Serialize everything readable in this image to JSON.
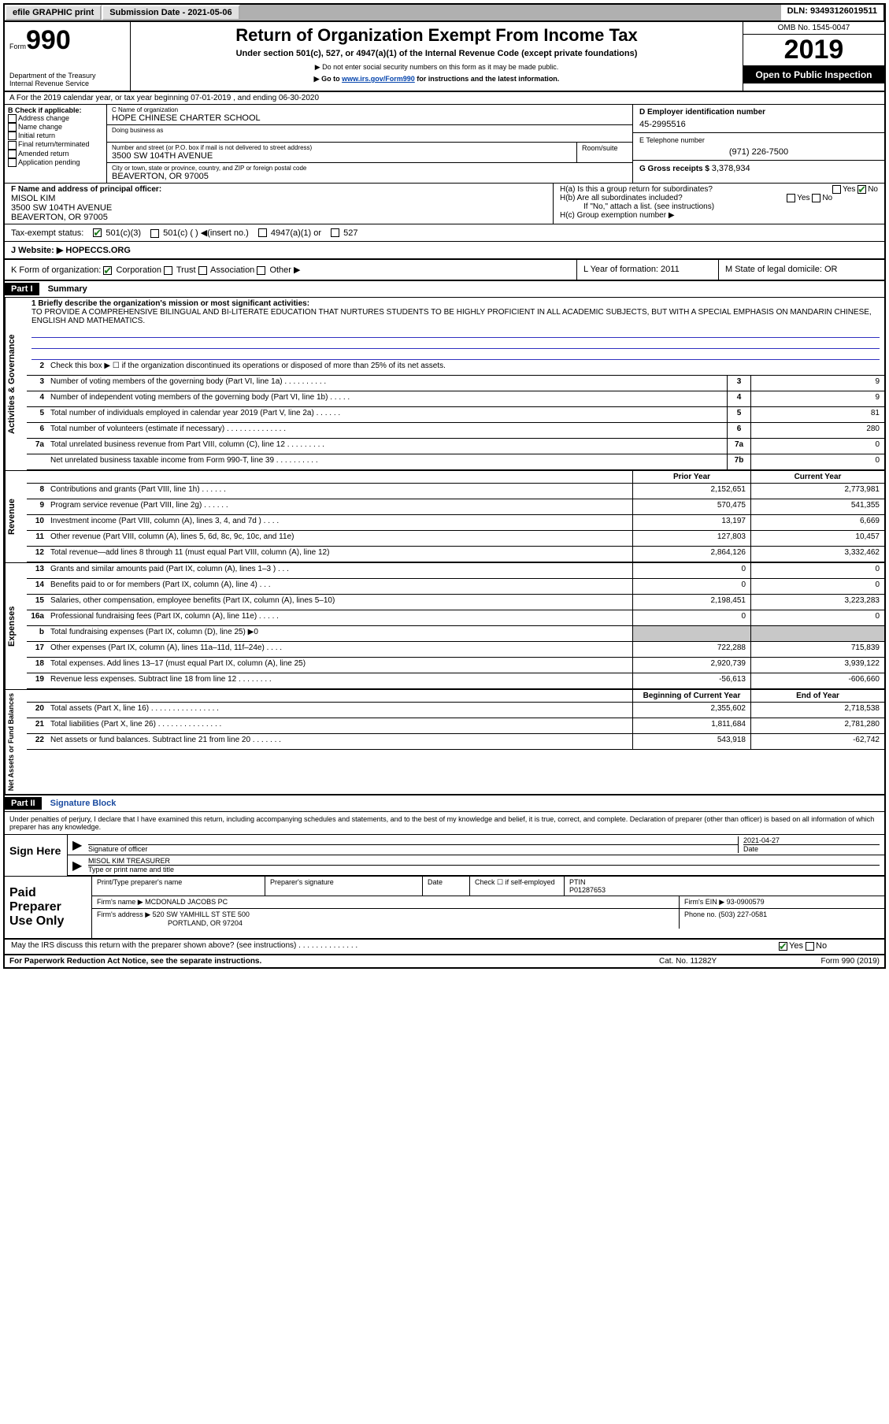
{
  "topbar": {
    "efile": "efile GRAPHIC print",
    "submission": "Submission Date - 2021-05-06",
    "dln": "DLN: 93493126019511"
  },
  "header": {
    "form_prefix": "Form",
    "form_number": "990",
    "dept": "Department of the Treasury\nInternal Revenue Service",
    "title": "Return of Organization Exempt From Income Tax",
    "subtitle": "Under section 501(c), 527, or 4947(a)(1) of the Internal Revenue Code (except private foundations)",
    "note1": "▶ Do not enter social security numbers on this form as it may be made public.",
    "note2_pre": "▶ Go to ",
    "note2_link": "www.irs.gov/Form990",
    "note2_post": " for instructions and the latest information.",
    "omb": "OMB No. 1545-0047",
    "year": "2019",
    "open": "Open to Public Inspection"
  },
  "row_a": "A For the 2019 calendar year, or tax year beginning 07-01-2019   , and ending 06-30-2020",
  "col_b": {
    "title": "B Check if applicable:",
    "items": [
      "Address change",
      "Name change",
      "Initial return",
      "Final return/terminated",
      "Amended return",
      "Application pending"
    ]
  },
  "col_c": {
    "name_label": "C Name of organization",
    "name": "HOPE CHINESE CHARTER SCHOOL",
    "dba_label": "Doing business as",
    "addr_label": "Number and street (or P.O. box if mail is not delivered to street address)",
    "addr": "3500 SW 104TH AVENUE",
    "room_label": "Room/suite",
    "city_label": "City or town, state or province, country, and ZIP or foreign postal code",
    "city": "BEAVERTON, OR  97005"
  },
  "col_d": {
    "ein_label": "D Employer identification number",
    "ein": "45-2995516",
    "tel_label": "E Telephone number",
    "tel": "(971) 226-7500",
    "gross_label": "G Gross receipts $ ",
    "gross": "3,378,934"
  },
  "col_f": {
    "label": "F  Name and address of principal officer:",
    "name": "MISOL KIM",
    "addr1": "3500 SW 104TH AVENUE",
    "addr2": "BEAVERTON, OR  97005"
  },
  "col_h": {
    "ha": "H(a)  Is this a group return for subordinates?",
    "hb": "H(b)  Are all subordinates included?",
    "hb_note": "If \"No,\" attach a list. (see instructions)",
    "hc": "H(c)  Group exemption number ▶"
  },
  "tax_exempt": {
    "label": "Tax-exempt status:",
    "opt1": "501(c)(3)",
    "opt2": "501(c) (  ) ◀(insert no.)",
    "opt3": "4947(a)(1) or",
    "opt4": "527"
  },
  "website": {
    "label": "J  Website: ▶ ",
    "value": "HOPECCS.ORG"
  },
  "klm": {
    "k": "K Form of organization:",
    "k_opts": [
      "Corporation",
      "Trust",
      "Association",
      "Other ▶"
    ],
    "l": "L Year of formation: 2011",
    "m": "M State of legal domicile: OR"
  },
  "part1": {
    "header": "Part I",
    "title": "Summary"
  },
  "mission": {
    "label": "1  Briefly describe the organization's mission or most significant activities:",
    "text": "TO PROVIDE A COMPREHENSIVE BILINGUAL AND BI-LITERATE EDUCATION THAT NURTURES STUDENTS TO BE HIGHLY PROFICIENT IN ALL ACADEMIC SUBJECTS, BUT WITH A SPECIAL EMPHASIS ON MANDARIN CHINESE, ENGLISH AND MATHEMATICS."
  },
  "line2": "Check this box ▶ ☐  if the organization discontinued its operations or disposed of more than 25% of its net assets.",
  "governance_lines": [
    {
      "n": "3",
      "d": "Number of voting members of the governing body (Part VI, line 1a)  .   .   .   .   .   .   .   .   .   .",
      "box": "3",
      "v": "9"
    },
    {
      "n": "4",
      "d": "Number of independent voting members of the governing body (Part VI, line 1b)  .   .   .   .   .",
      "box": "4",
      "v": "9"
    },
    {
      "n": "5",
      "d": "Total number of individuals employed in calendar year 2019 (Part V, line 2a)  .   .   .   .   .   .",
      "box": "5",
      "v": "81"
    },
    {
      "n": "6",
      "d": "Total number of volunteers (estimate if necessary)   .   .   .   .   .   .   .   .   .   .   .   .   .   .",
      "box": "6",
      "v": "280"
    },
    {
      "n": "7a",
      "d": "Total unrelated business revenue from Part VIII, column (C), line 12  .   .   .   .   .   .   .   .   .",
      "box": "7a",
      "v": "0"
    },
    {
      "n": "",
      "d": "Net unrelated business taxable income from Form 990-T, line 39   .   .   .   .   .   .   .   .   .   .",
      "box": "7b",
      "v": "0"
    }
  ],
  "col_headers": {
    "prior": "Prior Year",
    "current": "Current Year"
  },
  "revenue_lines": [
    {
      "n": "8",
      "d": "Contributions and grants (Part VIII, line 1h)   .   .   .   .   .   .",
      "p": "2,152,651",
      "c": "2,773,981"
    },
    {
      "n": "9",
      "d": "Program service revenue (Part VIII, line 2g)   .   .   .   .   .   .",
      "p": "570,475",
      "c": "541,355"
    },
    {
      "n": "10",
      "d": "Investment income (Part VIII, column (A), lines 3, 4, and 7d )   .   .   .   .",
      "p": "13,197",
      "c": "6,669"
    },
    {
      "n": "11",
      "d": "Other revenue (Part VIII, column (A), lines 5, 6d, 8c, 9c, 10c, and 11e)",
      "p": "127,803",
      "c": "10,457"
    },
    {
      "n": "12",
      "d": "Total revenue—add lines 8 through 11 (must equal Part VIII, column (A), line 12)",
      "p": "2,864,126",
      "c": "3,332,462"
    }
  ],
  "expense_lines": [
    {
      "n": "13",
      "d": "Grants and similar amounts paid (Part IX, column (A), lines 1–3 )   .   .   .",
      "p": "0",
      "c": "0"
    },
    {
      "n": "14",
      "d": "Benefits paid to or for members (Part IX, column (A), line 4)   .   .   .",
      "p": "0",
      "c": "0"
    },
    {
      "n": "15",
      "d": "Salaries, other compensation, employee benefits (Part IX, column (A), lines 5–10)",
      "p": "2,198,451",
      "c": "3,223,283"
    },
    {
      "n": "16a",
      "d": "Professional fundraising fees (Part IX, column (A), line 11e)   .   .   .   .   .",
      "p": "0",
      "c": "0"
    },
    {
      "n": "b",
      "d": "Total fundraising expenses (Part IX, column (D), line 25) ▶0",
      "p": "",
      "c": "",
      "shaded": true
    },
    {
      "n": "17",
      "d": "Other expenses (Part IX, column (A), lines 11a–11d, 11f–24e)   .   .   .   .",
      "p": "722,288",
      "c": "715,839"
    },
    {
      "n": "18",
      "d": "Total expenses. Add lines 13–17 (must equal Part IX, column (A), line 25)",
      "p": "2,920,739",
      "c": "3,939,122"
    },
    {
      "n": "19",
      "d": "Revenue less expenses. Subtract line 18 from line 12  .   .   .   .   .   .   .   .",
      "p": "-56,613",
      "c": "-606,660"
    }
  ],
  "net_headers": {
    "begin": "Beginning of Current Year",
    "end": "End of Year"
  },
  "net_lines": [
    {
      "n": "20",
      "d": "Total assets (Part X, line 16)  .   .   .   .   .   .   .   .   .   .   .   .   .   .   .   .",
      "p": "2,355,602",
      "c": "2,718,538"
    },
    {
      "n": "21",
      "d": "Total liabilities (Part X, line 26)  .   .   .   .   .   .   .   .   .   .   .   .   .   .   .",
      "p": "1,811,684",
      "c": "2,781,280"
    },
    {
      "n": "22",
      "d": "Net assets or fund balances. Subtract line 21 from line 20  .   .   .   .   .   .   .",
      "p": "543,918",
      "c": "-62,742"
    }
  ],
  "part2": {
    "header": "Part II",
    "title": "Signature Block"
  },
  "perjury": "Under penalties of perjury, I declare that I have examined this return, including accompanying schedules and statements, and to the best of my knowledge and belief, it is true, correct, and complete. Declaration of preparer (other than officer) is based on all information of which preparer has any knowledge.",
  "sign": {
    "label": "Sign Here",
    "sig_label": "Signature of officer",
    "date_label": "Date",
    "date": "2021-04-27",
    "name": "MISOL KIM  TREASURER",
    "name_label": "Type or print name and title"
  },
  "paid": {
    "label": "Paid Preparer Use Only",
    "h1": "Print/Type preparer's name",
    "h2": "Preparer's signature",
    "h3": "Date",
    "h4_pre": "Check ☐ if self-employed",
    "h5": "PTIN",
    "ptin": "P01287653",
    "firm_label": "Firm's name    ▶ ",
    "firm": "MCDONALD JACOBS PC",
    "ein_label": "Firm's EIN ▶ ",
    "ein": "93-0900579",
    "addr_label": "Firm's address ▶ ",
    "addr1": "520 SW YAMHILL ST STE 500",
    "addr2": "PORTLAND, OR  97204",
    "phone_label": "Phone no. ",
    "phone": "(503) 227-0581"
  },
  "discuss": "May the IRS discuss this return with the preparer shown above? (see instructions)   .   .   .   .   .   .   .   .   .   .   .   .   .   .",
  "footer": {
    "l": "For Paperwork Reduction Act Notice, see the separate instructions.",
    "m": "Cat. No. 11282Y",
    "r": "Form 990 (2019)"
  },
  "vtabs": {
    "gov": "Activities & Governance",
    "rev": "Revenue",
    "exp": "Expenses",
    "net": "Net Assets or Fund Balances"
  }
}
